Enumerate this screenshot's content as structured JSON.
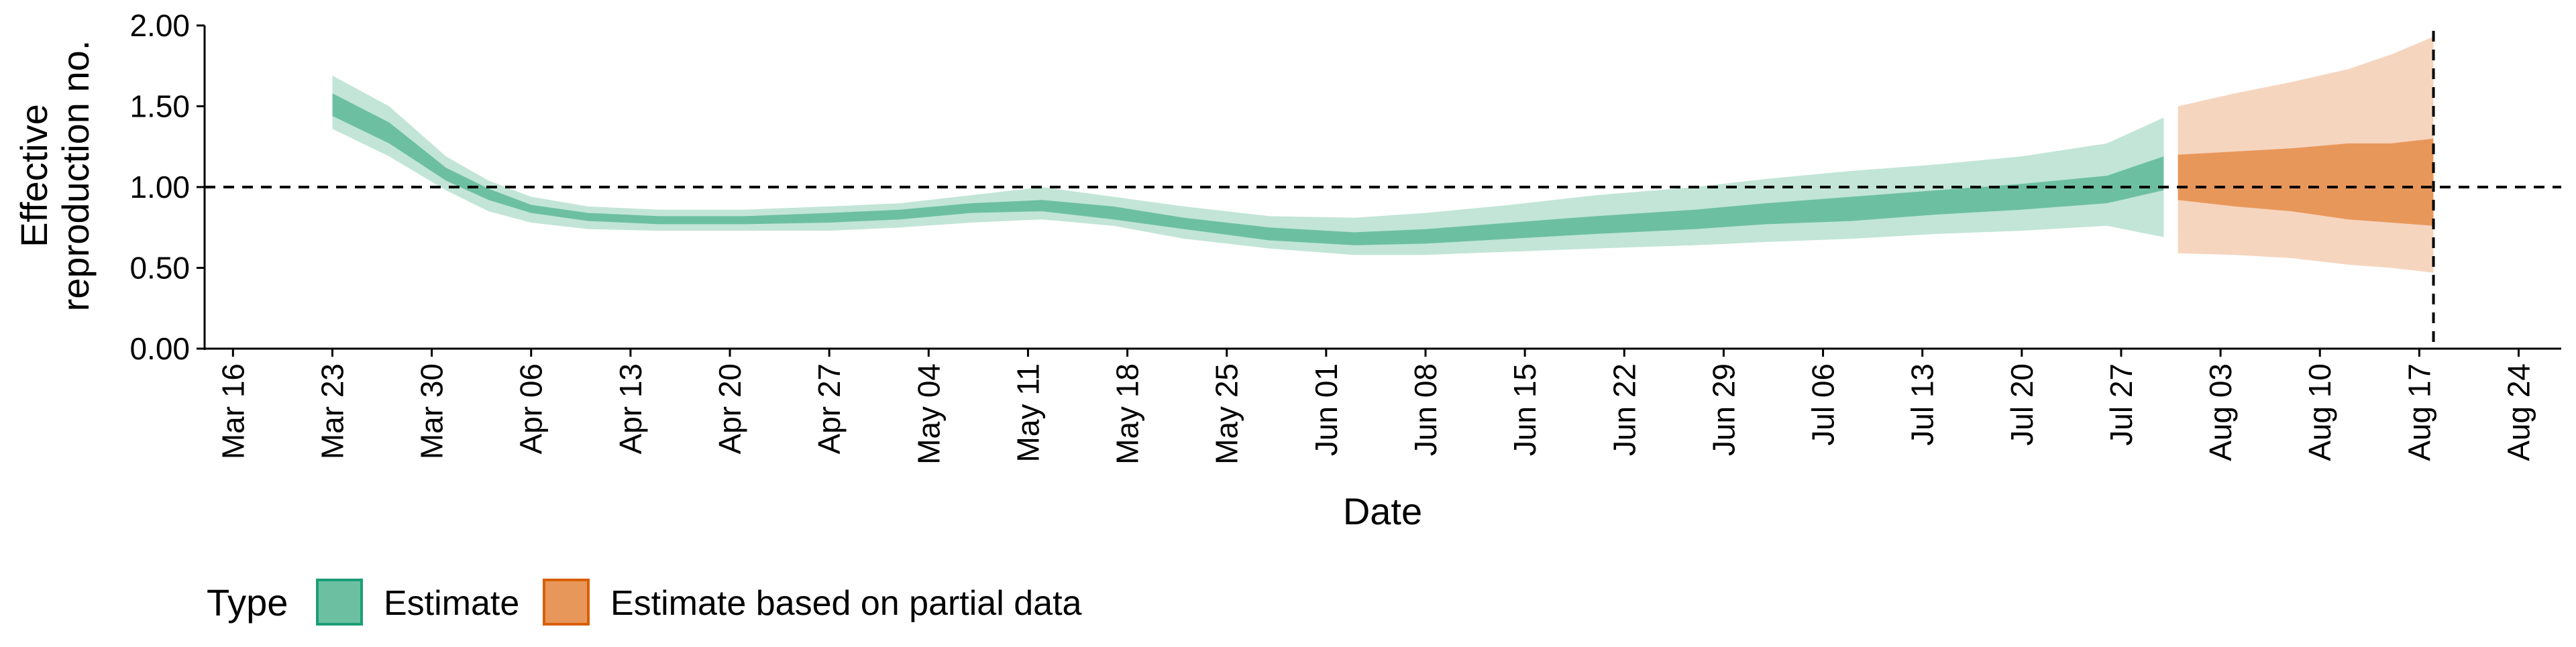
{
  "chart_data": {
    "type": "area",
    "title": "",
    "xlabel": "Date",
    "ylabel": [
      "Effective",
      "reproduction no."
    ],
    "ylim": [
      0,
      2.0
    ],
    "y_ticks": [
      "0.00",
      "0.50",
      "1.00",
      "1.50",
      "2.00"
    ],
    "xlim": [
      "2020-03-14",
      "2020-08-27"
    ],
    "x_ticks": [
      {
        "date": "2020-03-16",
        "label": "Mar 16"
      },
      {
        "date": "2020-03-23",
        "label": "Mar 23"
      },
      {
        "date": "2020-03-30",
        "label": "Mar 30"
      },
      {
        "date": "2020-04-06",
        "label": "Apr 06"
      },
      {
        "date": "2020-04-13",
        "label": "Apr 13"
      },
      {
        "date": "2020-04-20",
        "label": "Apr 20"
      },
      {
        "date": "2020-04-27",
        "label": "Apr 27"
      },
      {
        "date": "2020-05-04",
        "label": "May 04"
      },
      {
        "date": "2020-05-11",
        "label": "May 11"
      },
      {
        "date": "2020-05-18",
        "label": "May 18"
      },
      {
        "date": "2020-05-25",
        "label": "May 25"
      },
      {
        "date": "2020-06-01",
        "label": "Jun 01"
      },
      {
        "date": "2020-06-08",
        "label": "Jun 08"
      },
      {
        "date": "2020-06-15",
        "label": "Jun 15"
      },
      {
        "date": "2020-06-22",
        "label": "Jun 22"
      },
      {
        "date": "2020-06-29",
        "label": "Jun 29"
      },
      {
        "date": "2020-07-06",
        "label": "Jul 06"
      },
      {
        "date": "2020-07-13",
        "label": "Jul 13"
      },
      {
        "date": "2020-07-20",
        "label": "Jul 20"
      },
      {
        "date": "2020-07-27",
        "label": "Jul 27"
      },
      {
        "date": "2020-08-03",
        "label": "Aug 03"
      },
      {
        "date": "2020-08-10",
        "label": "Aug 10"
      },
      {
        "date": "2020-08-17",
        "label": "Aug 17"
      },
      {
        "date": "2020-08-24",
        "label": "Aug 24"
      }
    ],
    "reference_line_y": 1.0,
    "reference_line_x": "2020-08-18",
    "grid": false,
    "legend": {
      "title": "Type",
      "position": "bottom-left",
      "entries": [
        "Estimate",
        "Estimate based on partial data"
      ]
    },
    "series": [
      {
        "name": "Estimate",
        "colors": {
          "inner": "#6cc0a1",
          "outer": "#c2e5d7",
          "edge": "#1b9e77"
        },
        "points": [
          {
            "date": "2020-03-23",
            "lo90": 1.36,
            "lo50": 1.44,
            "hi50": 1.58,
            "hi90": 1.69
          },
          {
            "date": "2020-03-27",
            "lo90": 1.19,
            "lo50": 1.27,
            "hi50": 1.4,
            "hi90": 1.5
          },
          {
            "date": "2020-03-31",
            "lo90": 0.98,
            "lo50": 1.04,
            "hi50": 1.12,
            "hi90": 1.19
          },
          {
            "date": "2020-04-03",
            "lo90": 0.85,
            "lo50": 0.92,
            "hi50": 0.99,
            "hi90": 1.04
          },
          {
            "date": "2020-04-06",
            "lo90": 0.78,
            "lo50": 0.84,
            "hi50": 0.89,
            "hi90": 0.94
          },
          {
            "date": "2020-04-10",
            "lo90": 0.74,
            "lo50": 0.79,
            "hi50": 0.84,
            "hi90": 0.88
          },
          {
            "date": "2020-04-15",
            "lo90": 0.73,
            "lo50": 0.77,
            "hi50": 0.82,
            "hi90": 0.86
          },
          {
            "date": "2020-04-21",
            "lo90": 0.73,
            "lo50": 0.77,
            "hi50": 0.82,
            "hi90": 0.86
          },
          {
            "date": "2020-04-27",
            "lo90": 0.73,
            "lo50": 0.78,
            "hi50": 0.84,
            "hi90": 0.88
          },
          {
            "date": "2020-05-02",
            "lo90": 0.75,
            "lo50": 0.8,
            "hi50": 0.86,
            "hi90": 0.9
          },
          {
            "date": "2020-05-07",
            "lo90": 0.78,
            "lo50": 0.84,
            "hi50": 0.9,
            "hi90": 0.95
          },
          {
            "date": "2020-05-12",
            "lo90": 0.8,
            "lo50": 0.85,
            "hi50": 0.92,
            "hi90": 1.0
          },
          {
            "date": "2020-05-17",
            "lo90": 0.76,
            "lo50": 0.8,
            "hi50": 0.88,
            "hi90": 0.94
          },
          {
            "date": "2020-05-22",
            "lo90": 0.68,
            "lo50": 0.74,
            "hi50": 0.81,
            "hi90": 0.88
          },
          {
            "date": "2020-05-28",
            "lo90": 0.62,
            "lo50": 0.67,
            "hi50": 0.75,
            "hi90": 0.82
          },
          {
            "date": "2020-06-03",
            "lo90": 0.58,
            "lo50": 0.64,
            "hi50": 0.72,
            "hi90": 0.81
          },
          {
            "date": "2020-06-08",
            "lo90": 0.58,
            "lo50": 0.65,
            "hi50": 0.74,
            "hi90": 0.84
          },
          {
            "date": "2020-06-14",
            "lo90": 0.6,
            "lo50": 0.68,
            "hi50": 0.78,
            "hi90": 0.89
          },
          {
            "date": "2020-06-20",
            "lo90": 0.62,
            "lo50": 0.71,
            "hi50": 0.82,
            "hi90": 0.95
          },
          {
            "date": "2020-06-27",
            "lo90": 0.64,
            "lo50": 0.74,
            "hi50": 0.86,
            "hi90": 1.0
          },
          {
            "date": "2020-07-02",
            "lo90": 0.66,
            "lo50": 0.77,
            "hi50": 0.9,
            "hi90": 1.05
          },
          {
            "date": "2020-07-08",
            "lo90": 0.68,
            "lo50": 0.79,
            "hi50": 0.94,
            "hi90": 1.1
          },
          {
            "date": "2020-07-14",
            "lo90": 0.71,
            "lo50": 0.83,
            "hi50": 0.98,
            "hi90": 1.14
          },
          {
            "date": "2020-07-20",
            "lo90": 0.73,
            "lo50": 0.86,
            "hi50": 1.02,
            "hi90": 1.19
          },
          {
            "date": "2020-07-26",
            "lo90": 0.76,
            "lo50": 0.9,
            "hi50": 1.07,
            "hi90": 1.27
          },
          {
            "date": "2020-07-30",
            "lo90": 0.69,
            "lo50": 0.98,
            "hi50": 1.19,
            "hi90": 1.43
          }
        ]
      },
      {
        "name": "Estimate based on partial data",
        "colors": {
          "inner": "#e8975a",
          "outer": "#f6d5bf",
          "edge": "#d95f02"
        },
        "points": [
          {
            "date": "2020-07-31",
            "lo90": 0.59,
            "lo50": 0.92,
            "hi50": 1.2,
            "hi90": 1.5
          },
          {
            "date": "2020-08-04",
            "lo90": 0.58,
            "lo50": 0.88,
            "hi50": 1.22,
            "hi90": 1.58
          },
          {
            "date": "2020-08-08",
            "lo90": 0.56,
            "lo50": 0.85,
            "hi50": 1.24,
            "hi90": 1.65
          },
          {
            "date": "2020-08-12",
            "lo90": 0.52,
            "lo50": 0.8,
            "hi50": 1.27,
            "hi90": 1.73
          },
          {
            "date": "2020-08-15",
            "lo90": 0.5,
            "lo50": 0.78,
            "hi50": 1.27,
            "hi90": 1.82
          },
          {
            "date": "2020-08-18",
            "lo90": 0.47,
            "lo50": 0.76,
            "hi50": 1.3,
            "hi90": 1.93
          }
        ]
      }
    ]
  }
}
